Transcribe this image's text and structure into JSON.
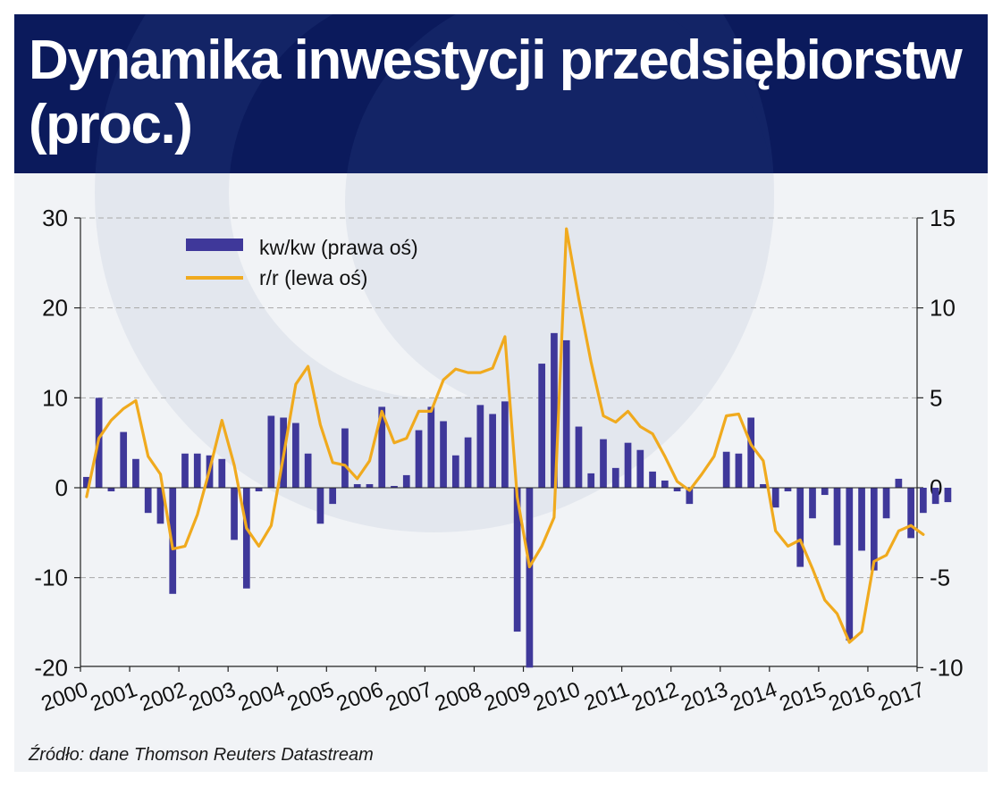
{
  "title": "Dynamika inwestycji przedsiębiorstw (proc.)",
  "source": "Źródło: dane Thomson Reuters Datastream",
  "colors": {
    "header_bg": "#0b1a5c",
    "background": "#f1f3f6",
    "bar": "#3f389a",
    "line": "#f0aa1e",
    "grid": "#a8a8a8",
    "axis": "#222222"
  },
  "chart_data": {
    "type": "bar+line",
    "x_tick_labels": [
      "2000",
      "2001",
      "2002",
      "2003",
      "2004",
      "2005",
      "2006",
      "2007",
      "2008",
      "2009",
      "2010",
      "2011",
      "2012",
      "2013",
      "2014",
      "2015",
      "2016",
      "2017"
    ],
    "periods_per_year": 4,
    "left_axis": {
      "ylim": [
        -20,
        30
      ],
      "ticks": [
        30,
        20,
        10,
        0,
        -10,
        -20
      ]
    },
    "right_axis": {
      "ylim": [
        -10,
        15
      ],
      "ticks": [
        15,
        10,
        5,
        0,
        -5,
        -10
      ]
    },
    "grid": "horizontal dashed",
    "legend_position": "top-left",
    "series": [
      {
        "name": "kw/kw (prawa oś)",
        "kind": "bar",
        "axis": "right",
        "values": [
          0.6,
          5.0,
          -0.2,
          3.1,
          1.6,
          -1.4,
          -2.0,
          -5.9,
          1.9,
          1.9,
          1.8,
          1.6,
          -2.9,
          -5.6,
          -0.2,
          4.0,
          3.9,
          3.6,
          1.9,
          -2.0,
          -0.9,
          3.3,
          0.2,
          0.2,
          4.5,
          0.1,
          0.7,
          3.2,
          4.5,
          3.7,
          1.8,
          2.8,
          4.6,
          4.1,
          4.8,
          -8.0,
          -10.0,
          6.9,
          8.6,
          8.2,
          3.4,
          0.8,
          2.7,
          1.1,
          2.5,
          2.1,
          0.9,
          0.4,
          -0.2,
          -0.9,
          0.0,
          0.0,
          2.0,
          1.9,
          3.9,
          0.2,
          -1.1,
          -0.2,
          -4.4,
          -1.7,
          -0.4,
          -3.2,
          -8.5,
          -3.5,
          -4.6,
          -1.7,
          0.5,
          -2.8,
          -1.4,
          -0.9,
          -0.8
        ]
      },
      {
        "name": "r/r (lewa oś)",
        "kind": "line",
        "axis": "left",
        "values": [
          -1.0,
          5.5,
          7.5,
          8.8,
          9.7,
          3.5,
          1.5,
          -6.8,
          -6.5,
          -3.0,
          2.0,
          7.5,
          2.5,
          -4.5,
          -6.5,
          -4.2,
          3.5,
          11.5,
          13.5,
          7.0,
          2.8,
          2.5,
          1.0,
          3.0,
          8.5,
          5.0,
          5.5,
          8.5,
          8.5,
          12.0,
          13.2,
          12.8,
          12.8,
          13.3,
          16.8,
          -1.0,
          -8.8,
          -6.5,
          -3.3,
          28.8,
          21.0,
          14.0,
          8.0,
          7.3,
          8.5,
          6.8,
          6.0,
          3.5,
          0.7,
          -0.3,
          1.5,
          3.5,
          8.0,
          8.2,
          4.8,
          3.0,
          -4.8,
          -6.5,
          -5.8,
          -9.0,
          -12.5,
          -14.0,
          -17.2,
          -16.0,
          -8.2,
          -7.5,
          -4.8,
          -4.2,
          -5.2
        ]
      }
    ]
  }
}
